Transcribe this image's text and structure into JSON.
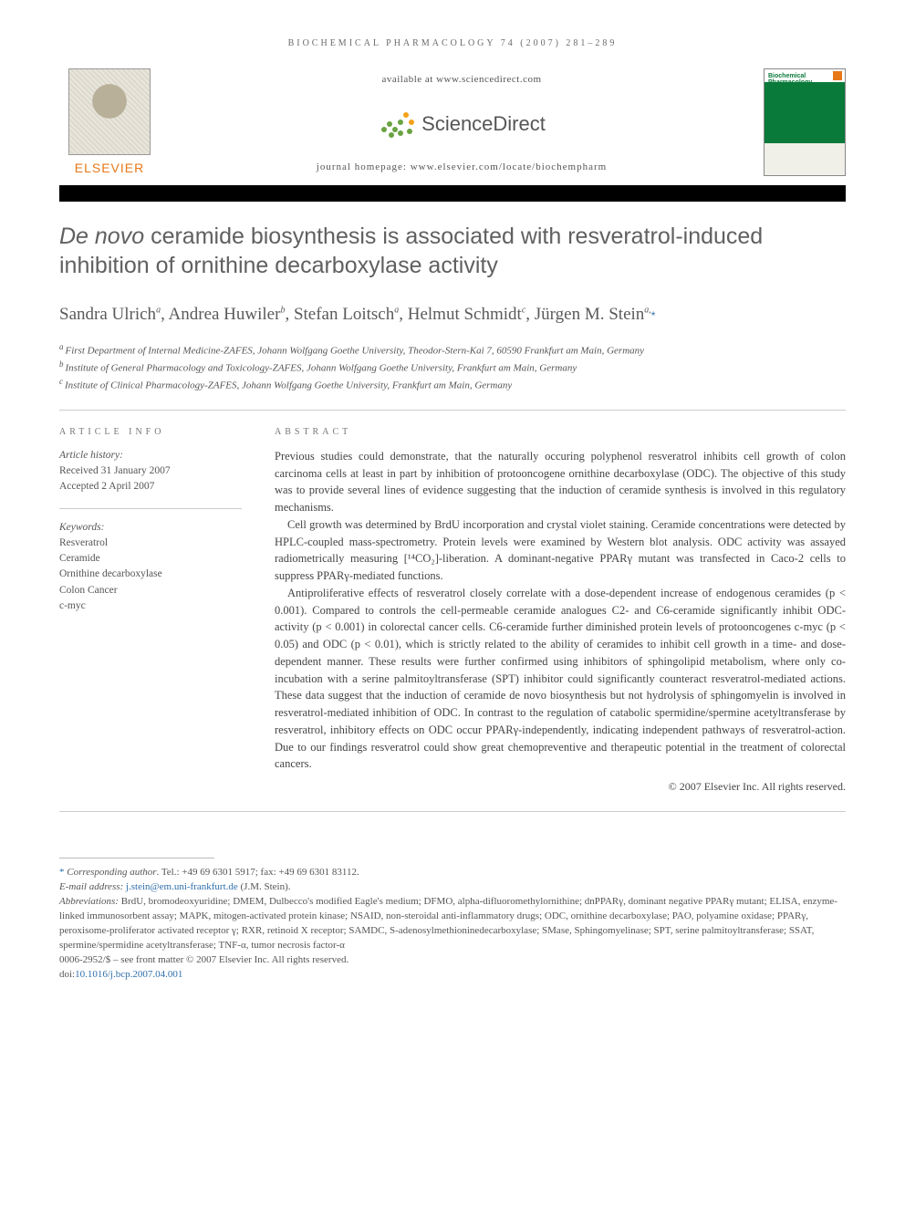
{
  "running_head": "BIOCHEMICAL PHARMACOLOGY 74 (2007) 281–289",
  "top": {
    "available_at": "available at www.sciencedirect.com",
    "sd_brand": "ScienceDirect",
    "homepage_label": "journal homepage: www.elsevier.com/locate/biochempharm",
    "elsevier_word": "ELSEVIER",
    "journal_cover_title": "Biochemical Pharmacology",
    "sd_dot_colors": [
      "#f4a11a",
      "#f4a11a",
      "#6aa342",
      "#6aa342",
      "#6aa342",
      "#6aa342",
      "#6aa342",
      "#6aa342",
      "#6aa342"
    ],
    "sd_dot_pos": [
      [
        28,
        2
      ],
      [
        34,
        10
      ],
      [
        22,
        10
      ],
      [
        10,
        12
      ],
      [
        16,
        18
      ],
      [
        4,
        18
      ],
      [
        32,
        20
      ],
      [
        22,
        22
      ],
      [
        12,
        24
      ]
    ]
  },
  "title_italic": "De novo",
  "title_rest": " ceramide biosynthesis is associated with resveratrol-induced inhibition of ornithine decarboxylase activity",
  "authors": [
    {
      "name": "Sandra Ulrich",
      "aff": "a"
    },
    {
      "name": "Andrea Huwiler",
      "aff": "b"
    },
    {
      "name": "Stefan Loitsch",
      "aff": "a"
    },
    {
      "name": "Helmut Schmidt",
      "aff": "c"
    },
    {
      "name": "Jürgen M. Stein",
      "aff": "a",
      "corresponding": true
    }
  ],
  "affiliations": {
    "a": "First Department of Internal Medicine-ZAFES, Johann Wolfgang Goethe University, Theodor-Stern-Kai 7, 60590 Frankfurt am Main, Germany",
    "b": "Institute of General Pharmacology and Toxicology-ZAFES, Johann Wolfgang Goethe University, Frankfurt am Main, Germany",
    "c": "Institute of Clinical Pharmacology-ZAFES, Johann Wolfgang Goethe University, Frankfurt am Main, Germany"
  },
  "article_info": {
    "label": "ARTICLE INFO",
    "history_hd": "Article history:",
    "received": "Received 31 January 2007",
    "accepted": "Accepted 2 April 2007",
    "keywords_hd": "Keywords:",
    "keywords": [
      "Resveratrol",
      "Ceramide",
      "Ornithine decarboxylase",
      "Colon Cancer",
      "c-myc"
    ]
  },
  "abstract": {
    "label": "ABSTRACT",
    "p1": "Previous studies could demonstrate, that the naturally occuring polyphenol resveratrol inhibits cell growth of colon carcinoma cells at least in part by inhibition of protooncogene ornithine decarboxylase (ODC). The objective of this study was to provide several lines of evidence suggesting that the induction of ceramide synthesis is involved in this regulatory mechanisms.",
    "p2": "Cell growth was determined by BrdU incorporation and crystal violet staining. Ceramide concentrations were detected by HPLC-coupled mass-spectrometry. Protein levels were examined by Western blot analysis. ODC activity was assayed radiometrically measuring [¹⁴CO₂]-liberation. A dominant-negative PPARγ mutant was transfected in Caco-2 cells to suppress PPARγ-mediated functions.",
    "p3": "Antiproliferative effects of resveratrol closely correlate with a dose-dependent increase of endogenous ceramides (p < 0.001). Compared to controls the cell-permeable ceramide analogues C2- and C6-ceramide significantly inhibit ODC-activity (p < 0.001) in colorectal cancer cells. C6-ceramide further diminished protein levels of protooncogenes c-myc (p < 0.05) and ODC (p < 0.01), which is strictly related to the ability of ceramides to inhibit cell growth in a time- and dose-dependent manner. These results were further confirmed using inhibitors of sphingolipid metabolism, where only co-incubation with a serine palmitoyltransferase (SPT) inhibitor could significantly counteract resveratrol-mediated actions. These data suggest that the induction of ceramide de novo biosynthesis but not hydrolysis of sphingomyelin is involved in resveratrol-mediated inhibition of ODC. In contrast to the regulation of catabolic spermidine/spermine acetyltransferase by resveratrol, inhibitory effects on ODC occur PPARγ-independently, indicating independent pathways of resveratrol-action. Due to our findings resveratrol could show great chemopreventive and therapeutic potential in the treatment of colorectal cancers.",
    "copyright": "© 2007 Elsevier Inc. All rights reserved."
  },
  "footnotes": {
    "corr_label": "Corresponding author",
    "corr_contact": ". Tel.: +49 69 6301 5917; fax: +49 69 6301 83112.",
    "email_label": "E-mail address: ",
    "email": "j.stein@em.uni-frankfurt.de",
    "email_who": " (J.M. Stein).",
    "abbr_label": "Abbreviations:",
    "abbr_text": " BrdU, bromodeoxyuridine; DMEM, Dulbecco's modified Eagle's medium; DFMO, alpha-difluoromethylornithine; dnPPARγ, dominant negative PPARγ mutant; ELISA, enzyme-linked immunosorbent assay; MAPK, mitogen-activated protein kinase; NSAID, non-steroidal anti-inflammatory drugs; ODC, ornithine decarboxylase; PAO, polyamine oxidase; PPARγ, peroxisome-proliferator activated receptor γ; RXR, retinoid X receptor; SAMDC, S-adenosylmethioninedecarboxylase; SMase, Sphingomyelinase; SPT, serine palmitoyltransferase; SSAT, spermine/spermidine acetyltransferase; TNF-α, tumor necrosis factor-α",
    "front_matter": "0006-2952/$ – see front matter © 2007 Elsevier Inc. All rights reserved.",
    "doi_label": "doi:",
    "doi": "10.1016/j.bcp.2007.04.001"
  },
  "colors": {
    "link": "#2f6fab",
    "elsevier_orange": "#e77817",
    "journal_green": "#0a7a3a",
    "text": "#444444",
    "muted": "#606060"
  }
}
